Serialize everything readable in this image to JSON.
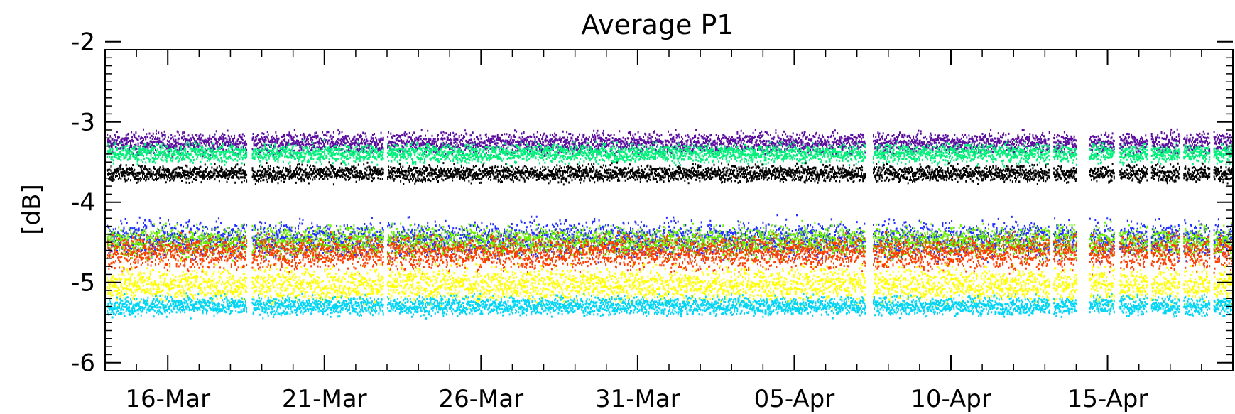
{
  "chart_data": {
    "type": "scatter",
    "title": "Average P1",
    "xlabel": "",
    "ylabel": "[dB]",
    "ylim": [
      -6.1,
      -2.1
    ],
    "xlim": [
      "2015-03-14",
      "2015-04-19"
    ],
    "grid": false,
    "legend": "none",
    "yticks": [
      -2,
      -3,
      -4,
      -5,
      -6
    ],
    "ytick_labels": [
      "-2",
      "-3",
      "-4",
      "-5",
      "-6"
    ],
    "xticks": [
      "2015-03-16",
      "2015-03-21",
      "2015-03-26",
      "2015-03-31",
      "2015-04-05",
      "2015-04-10",
      "2015-04-15"
    ],
    "xtick_labels": [
      "16-Mar",
      "21-Mar",
      "26-Mar",
      "31-Mar",
      "05-Apr",
      "10-Apr",
      "15-Apr"
    ],
    "gaps": [
      [
        "2015-03-18 12:00",
        "2015-03-18 16:00"
      ],
      [
        "2015-03-22 21:00",
        "2015-03-23 00:00"
      ],
      [
        "2015-04-07 06:00",
        "2015-04-07 12:00"
      ],
      [
        "2015-04-13 03:00",
        "2015-04-13 06:00"
      ],
      [
        "2015-04-14 00:00",
        "2015-04-14 10:00"
      ],
      [
        "2015-04-15 05:00",
        "2015-04-15 09:00"
      ],
      [
        "2015-04-16 06:00",
        "2015-04-16 09:00"
      ],
      [
        "2015-04-17 07:00",
        "2015-04-17 10:00"
      ],
      [
        "2015-04-18 06:00",
        "2015-04-18 09:00"
      ]
    ],
    "series": [
      {
        "color": "#5b0e9e",
        "center": -3.25,
        "spread": 0.09
      },
      {
        "color": "#00f07a",
        "center": -3.38,
        "spread": 0.08
      },
      {
        "color": "#000000",
        "center": -3.63,
        "spread": 0.07
      },
      {
        "color": "#1f2fff",
        "center": -4.45,
        "spread": 0.15
      },
      {
        "color": "#6cf000",
        "center": -4.48,
        "spread": 0.13
      },
      {
        "color": "#ff3c00",
        "center": -4.62,
        "spread": 0.14
      },
      {
        "color": "#ffff00",
        "center": -5.02,
        "spread": 0.15
      },
      {
        "color": "#00d5f5",
        "center": -5.28,
        "spread": 0.08
      }
    ]
  }
}
